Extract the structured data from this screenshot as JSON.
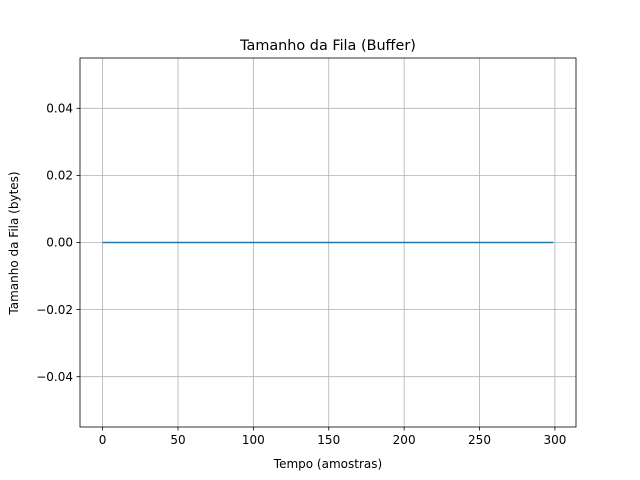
{
  "chart_data": {
    "type": "line",
    "title": "Tamanho da Fila (Buffer)",
    "xlabel": "Tempo (amostras)",
    "ylabel": "Tamanho da Fila (bytes)",
    "xlim": [
      -15,
      314
    ],
    "ylim": [
      -0.055,
      0.055
    ],
    "xticks": [
      0,
      50,
      100,
      150,
      200,
      250,
      300
    ],
    "xtick_labels": [
      "0",
      "50",
      "100",
      "150",
      "200",
      "250",
      "300"
    ],
    "yticks": [
      -0.04,
      -0.02,
      0.0,
      0.02,
      0.04
    ],
    "ytick_labels": [
      "−0.04",
      "−0.02",
      "0.00",
      "0.02",
      "0.04"
    ],
    "grid": true,
    "series": [
      {
        "x": [
          0,
          299
        ],
        "y": [
          0,
          0
        ],
        "color": "#1f77b4"
      }
    ]
  }
}
